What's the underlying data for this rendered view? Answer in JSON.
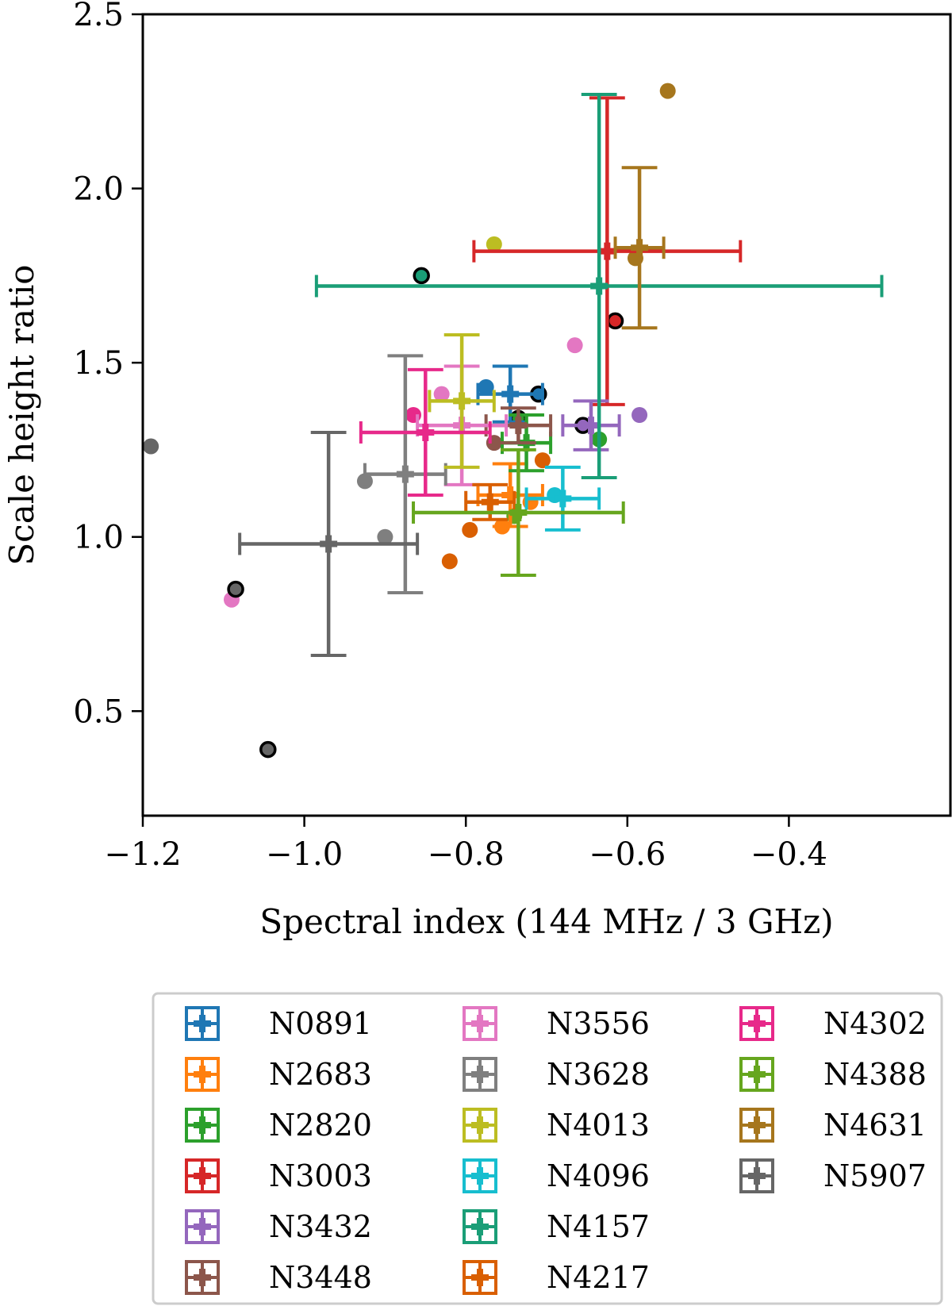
{
  "chart_data": {
    "type": "scatter",
    "title": "",
    "xlabel": "Spectral index (144 MHz / 3 GHz)",
    "ylabel": "Scale height ratio",
    "xlim": [
      -1.2,
      -0.2
    ],
    "ylim": [
      0.2,
      2.5
    ],
    "xticks": [
      -1.2,
      -1.0,
      -0.8,
      -0.6,
      -0.4
    ],
    "xtick_labels": [
      "−1.2",
      "−1.0",
      "−0.8",
      "−0.6",
      "−0.4"
    ],
    "yticks": [
      0.5,
      1.0,
      1.5,
      2.0,
      2.5
    ],
    "ytick_labels": [
      "0.5",
      "1.0",
      "1.5",
      "2.0",
      "2.5"
    ],
    "grid": false,
    "legend": {
      "placement": "below",
      "columns": 3
    },
    "series": [
      {
        "name": "N0891",
        "color": "#1f77b4",
        "mean": {
          "x": -0.745,
          "y": 1.41,
          "xerr": 0.04,
          "yerr": 0.08
        },
        "points": [
          {
            "x": -0.71,
            "y": 1.41,
            "edge": true
          },
          {
            "x": -0.775,
            "y": 1.43,
            "edge": false
          }
        ]
      },
      {
        "name": "N2683",
        "color": "#ff7f0e",
        "mean": {
          "x": -0.745,
          "y": 1.12,
          "xerr": 0.04,
          "yerr": 0.09
        },
        "points": [
          {
            "x": -0.755,
            "y": 1.03,
            "edge": false
          },
          {
            "x": -0.72,
            "y": 1.1,
            "edge": false
          }
        ]
      },
      {
        "name": "N2820",
        "color": "#2ca02c",
        "mean": {
          "x": -0.725,
          "y": 1.27,
          "xerr": 0.03,
          "yerr": 0.08
        },
        "points": [
          {
            "x": -0.635,
            "y": 1.28,
            "edge": false
          },
          {
            "x": -0.735,
            "y": 1.34,
            "edge": true
          }
        ]
      },
      {
        "name": "N3003",
        "color": "#d62728",
        "mean": {
          "x": -0.625,
          "y": 1.82,
          "xerr": 0.165,
          "yerr": 0.44
        },
        "points": [
          {
            "x": -0.615,
            "y": 1.62,
            "edge": true
          }
        ]
      },
      {
        "name": "N3432",
        "color": "#9467bd",
        "mean": {
          "x": -0.645,
          "y": 1.32,
          "xerr": 0.035,
          "yerr": 0.07
        },
        "points": [
          {
            "x": -0.585,
            "y": 1.35,
            "edge": false
          },
          {
            "x": -0.655,
            "y": 1.32,
            "edge": true
          }
        ]
      },
      {
        "name": "N3448",
        "color": "#8c564b",
        "mean": {
          "x": -0.735,
          "y": 1.32,
          "xerr": 0.04,
          "yerr": 0.05
        },
        "points": [
          {
            "x": -0.765,
            "y": 1.27,
            "edge": false
          }
        ]
      },
      {
        "name": "N3556",
        "color": "#e377c2",
        "mean": {
          "x": -0.805,
          "y": 1.32,
          "xerr": 0.055,
          "yerr": 0.17
        },
        "points": [
          {
            "x": -1.09,
            "y": 0.82,
            "edge": false
          },
          {
            "x": -0.665,
            "y": 1.55,
            "edge": false
          },
          {
            "x": -0.83,
            "y": 1.41,
            "edge": false
          }
        ]
      },
      {
        "name": "N3628",
        "color": "#7f7f7f",
        "mean": {
          "x": -0.875,
          "y": 1.18,
          "xerr": 0.05,
          "yerr": 0.34
        },
        "points": [
          {
            "x": -0.925,
            "y": 1.16,
            "edge": false
          },
          {
            "x": -0.9,
            "y": 1.0,
            "edge": false
          }
        ]
      },
      {
        "name": "N4013",
        "color": "#bcbd22",
        "mean": {
          "x": -0.805,
          "y": 1.39,
          "xerr": 0.04,
          "yerr": 0.19
        },
        "points": [
          {
            "x": -0.765,
            "y": 1.84,
            "edge": false
          }
        ]
      },
      {
        "name": "N4096",
        "color": "#17becf",
        "mean": {
          "x": -0.68,
          "y": 1.11,
          "xerr": 0.045,
          "yerr": 0.09
        },
        "points": [
          {
            "x": -0.69,
            "y": 1.12,
            "edge": false
          }
        ]
      },
      {
        "name": "N4157",
        "color": "#1a9e77",
        "mean": {
          "x": -0.635,
          "y": 1.72,
          "xerr": 0.35,
          "yerr": 0.55
        },
        "points": [
          {
            "x": -0.855,
            "y": 1.75,
            "edge": true
          }
        ]
      },
      {
        "name": "N4217",
        "color": "#d95f02",
        "mean": {
          "x": -0.77,
          "y": 1.1,
          "xerr": 0.03,
          "yerr": 0.05
        },
        "points": [
          {
            "x": -0.82,
            "y": 0.93,
            "edge": false
          },
          {
            "x": -0.795,
            "y": 1.02,
            "edge": false
          },
          {
            "x": -0.705,
            "y": 1.22,
            "edge": false
          }
        ]
      },
      {
        "name": "N4302",
        "color": "#e7298a",
        "mean": {
          "x": -0.85,
          "y": 1.3,
          "xerr": 0.08,
          "yerr": 0.18
        },
        "points": [
          {
            "x": -0.865,
            "y": 1.35,
            "edge": false
          }
        ]
      },
      {
        "name": "N4388",
        "color": "#66a61e",
        "mean": {
          "x": -0.735,
          "y": 1.07,
          "xerr": 0.13,
          "yerr": 0.18
        },
        "points": [
          {
            "x": -0.74,
            "y": 1.06,
            "edge": false
          }
        ]
      },
      {
        "name": "N4631",
        "color": "#a6761d",
        "mean": {
          "x": -0.585,
          "y": 1.83,
          "xerr": 0.03,
          "yerr": 0.23
        },
        "points": [
          {
            "x": -0.55,
            "y": 2.28,
            "edge": false
          },
          {
            "x": -0.59,
            "y": 1.8,
            "edge": false
          }
        ]
      },
      {
        "name": "N5907",
        "color": "#666666",
        "mean": {
          "x": -0.97,
          "y": 0.98,
          "xerr": 0.11,
          "yerr": 0.32
        },
        "points": [
          {
            "x": -1.19,
            "y": 1.26,
            "edge": false
          },
          {
            "x": -1.085,
            "y": 0.85,
            "edge": true
          },
          {
            "x": -1.045,
            "y": 0.39,
            "edge": true
          }
        ]
      }
    ]
  }
}
